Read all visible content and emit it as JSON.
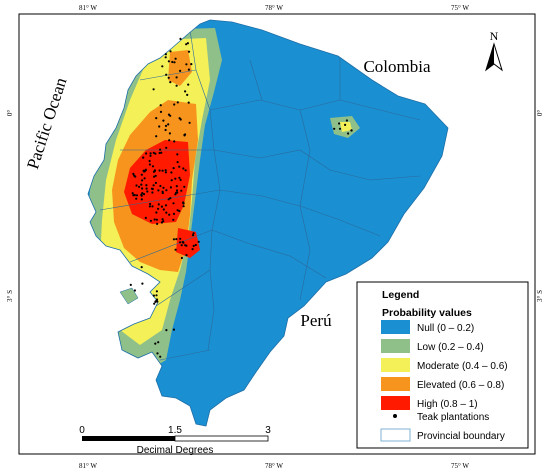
{
  "coordinates": {
    "top": [
      "81° W",
      "78° W",
      "75° W"
    ],
    "bottom": [
      "81° W",
      "78° W",
      "75° W"
    ],
    "left": [
      "0°",
      "3° S"
    ],
    "right": [
      "0°",
      "3° S"
    ]
  },
  "labels": {
    "ocean": "Pacific Ocean",
    "north_country": "Colombia",
    "south_country": "Perú",
    "north_arrow": "N"
  },
  "legend": {
    "title": "Legend",
    "subtitle": "Probability values",
    "classes": [
      {
        "label": "Null (0 – 0.2)",
        "color": "#1a8fd2"
      },
      {
        "label": "Low (0.2 – 0.4)",
        "color": "#8fc08a"
      },
      {
        "label": "Moderate (0.4 – 0.6)",
        "color": "#f3f058"
      },
      {
        "label": "Elevated (0.6 – 0.8)",
        "color": "#f7941d"
      },
      {
        "label": "High (0.8 – 1)",
        "color": "#ff1a00"
      }
    ],
    "points_label": "Teak plantations",
    "boundary_label": "Provincial boundary"
  },
  "scale_bar": {
    "ticks": [
      "0",
      "1.5",
      "3"
    ],
    "unit": "Decimal Degrees"
  },
  "colors": {
    "frame": "#000000",
    "country_outline": "#1e6fa8",
    "province_line": "#2a6b9c",
    "boundary_swatch": "#7fb3d5",
    "point": "#000000"
  }
}
